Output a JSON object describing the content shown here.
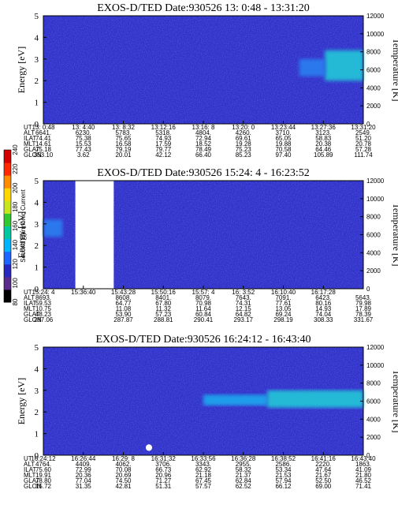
{
  "chart_data": [
    {
      "type": "heatmap",
      "title": "EXOS-D/TED   Date:930526  13: 0:48 - 13:31:20",
      "ylabel": "Energy [eV]",
      "ylabel_right": "Temperature [K]",
      "ylim": [
        0,
        5
      ],
      "ylim_right": [
        0,
        12000
      ],
      "yticks": [
        "0",
        "1",
        "2",
        "3",
        "4",
        "5"
      ],
      "yticks_right": [
        "0",
        "2000",
        "4000",
        "6000",
        "8000",
        "10000",
        "12000"
      ],
      "background": "#3030c8",
      "features": [
        {
          "kind": "enhancement",
          "t": [
            0.88,
            1.0
          ],
          "e": [
            2.0,
            3.4
          ],
          "level": "strong"
        },
        {
          "kind": "enhancement",
          "t": [
            0.8,
            0.88
          ],
          "e": [
            2.2,
            3.0
          ],
          "level": "weak"
        }
      ],
      "ephemeris": {
        "labels": [
          "UT",
          "ALT",
          "ILAT",
          "MLT",
          "GLAT",
          "GLON"
        ],
        "columns": [
          [
            "13: 0:48",
            "6641.",
            "74.41",
            "14.61",
            "75.18",
            "353.10"
          ],
          [
            "13: 4:40",
            "6230.",
            "75.38",
            "15.53",
            "77.43",
            "3.62"
          ],
          [
            "13: 8:32",
            "5783.",
            "75.65",
            "16.58",
            "79.19",
            "20.01"
          ],
          [
            "13:12:16",
            "5318.",
            "74.93",
            "17.59",
            "79.77",
            "42.12"
          ],
          [
            "13:16: 8",
            "4804.",
            "72.94",
            "18.52",
            "78.49",
            "66.40"
          ],
          [
            "13:20: 0",
            "4260.",
            "69.61",
            "19.28",
            "75.23",
            "85.23"
          ],
          [
            "13:23:44",
            "3710.",
            "65.05",
            "19.88",
            "70.58",
            "97.40"
          ],
          [
            "13:27:36",
            "3123.",
            "58.83",
            "20.38",
            "64.46",
            "105.89"
          ],
          [
            "13:31:20",
            "2549.",
            "51.20",
            "20.78",
            "57.28",
            "111.74"
          ]
        ]
      }
    },
    {
      "type": "heatmap",
      "title": "EXOS-D/TED   Date:930526  15:24: 4 - 16:23:52",
      "ylabel": "Energy [eV]",
      "ylabel_right": "Temperature [K]",
      "ylim": [
        0,
        5
      ],
      "ylim_right": [
        0,
        12000
      ],
      "yticks": [
        "0",
        "1",
        "2",
        "3",
        "4",
        "5"
      ],
      "yticks_right": [
        "0",
        "2000",
        "4000",
        "6000",
        "8000",
        "10000",
        "12000"
      ],
      "background": "#3030c8",
      "data_gaps": [
        [
          0.1,
          0.22
        ]
      ],
      "features": [
        {
          "kind": "enhancement",
          "t": [
            0.0,
            0.06
          ],
          "e": [
            2.4,
            3.2
          ],
          "level": "weak"
        }
      ],
      "ephemeris": {
        "labels": [
          "UT",
          "ALT",
          "ILAT",
          "MLT",
          "GLAT",
          "GLON"
        ],
        "columns": [
          [
            "15:24: 4",
            "8693.",
            "59.53",
            "10.75",
            "48.23",
            "287.06"
          ],
          [
            "15:36:40",
            "",
            "",
            "",
            "",
            ""
          ],
          [
            "15:43:28",
            "8608.",
            "64.77",
            "11.08",
            "53.90",
            "287.87"
          ],
          [
            "15:50:16",
            "8401.",
            "67.80",
            "11.32",
            "57.23",
            "288.81"
          ],
          [
            "15:57: 4",
            "8079.",
            "70.98",
            "11.64",
            "60.84",
            "290.41"
          ],
          [
            "16: 3:52",
            "7643.",
            "74.31",
            "12.15",
            "64.82",
            "293.17"
          ],
          [
            "16:10:40",
            "7091.",
            "77.61",
            "13.05",
            "69.24",
            "298.19"
          ],
          [
            "16:17:28",
            "6423.",
            "80.16",
            "14.93",
            "74.04",
            "308.33"
          ],
          [
            "",
            "5643.",
            "79.98",
            "17.89",
            "78.39",
            "331.67"
          ]
        ]
      }
    },
    {
      "type": "heatmap",
      "title": "EXOS-D/TED   Date:930526  16:24:12 - 16:43:40",
      "ylabel": "Energy [eV]",
      "ylabel_right": "Temperature [K]",
      "ylim": [
        0,
        5
      ],
      "ylim_right": [
        0,
        12000
      ],
      "yticks": [
        "0",
        "1",
        "2",
        "3",
        "4",
        "5"
      ],
      "yticks_right": [
        "0",
        "2000",
        "4000",
        "6000",
        "8000",
        "10000",
        "12000"
      ],
      "background": "#3030c8",
      "features": [
        {
          "kind": "enhancement",
          "t": [
            0.5,
            0.7
          ],
          "e": [
            2.3,
            2.8
          ],
          "level": "medium"
        },
        {
          "kind": "enhancement",
          "t": [
            0.7,
            1.0
          ],
          "e": [
            2.2,
            3.0
          ],
          "level": "strong"
        },
        {
          "kind": "spot",
          "t": [
            0.32,
            0.34
          ],
          "e": [
            0.2,
            0.5
          ],
          "level": "white"
        }
      ],
      "ephemeris": {
        "labels": [
          "UT",
          "ALT",
          "ILAT",
          "MLT",
          "GLAT",
          "GLON"
        ],
        "columns": [
          [
            "16:24:12",
            "4764.",
            "75.60",
            "19.91",
            "78.80",
            "15.72"
          ],
          [
            "16:26:44",
            "4409.",
            "72.99",
            "20.36",
            "77.04",
            "31.35"
          ],
          [
            "16:29: 8",
            "4062.",
            "70.08",
            "20.69",
            "74.50",
            "42.81"
          ],
          [
            "16:31:32",
            "3706.",
            "66.73",
            "20.96",
            "71.27",
            "51.31"
          ],
          [
            "16:33:56",
            "3343.",
            "62.92",
            "21.18",
            "67.45",
            "57.57"
          ],
          [
            "16:36:28",
            "2955.",
            "58.32",
            "21.37",
            "62.84",
            "62.52"
          ],
          [
            "16:38:52",
            "2586.",
            "53.34",
            "21.53",
            "57.94",
            "66.12"
          ],
          [
            "16:41:16",
            "2220.",
            "47.64",
            "21.67",
            "52.50",
            "69.00"
          ],
          [
            "16:43:40",
            "1863.",
            "41.09",
            "21.80",
            "46.52",
            "71.41"
          ]
        ]
      }
    }
  ],
  "colorbar": {
    "label": "Second Harmonic Current",
    "ticks": [
      "80",
      "100",
      "120",
      "140",
      "160",
      "180",
      "200",
      "220",
      "240"
    ],
    "range": [
      80,
      240
    ],
    "colors": [
      "#000000",
      "#5a2a8c",
      "#2828c0",
      "#1e64ff",
      "#00b4ff",
      "#00c8a0",
      "#32c832",
      "#c8e61e",
      "#ffd700",
      "#ff8c00",
      "#ff2800",
      "#d20000"
    ]
  }
}
